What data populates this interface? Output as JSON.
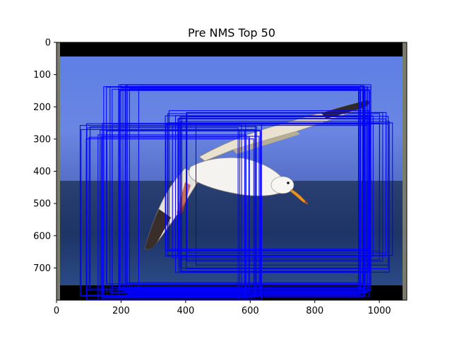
{
  "figure": {
    "title": "Pre NMS Top 50"
  },
  "axes": {
    "x_ticks": [
      "0",
      "200",
      "400",
      "600",
      "800",
      "1000"
    ],
    "y_ticks": [
      "0",
      "100",
      "200",
      "300",
      "400",
      "500",
      "600",
      "700"
    ],
    "x_range": [
      0,
      1085
    ],
    "y_range": [
      800,
      0
    ]
  },
  "image": {
    "subject": "seagull in flight over the sea",
    "colors": {
      "sky": "#6a85e4",
      "sea": "#24386a",
      "bar": "#000000",
      "side_strip": "#7a7a6e"
    }
  },
  "boxes": {
    "color": "#0000ff",
    "count": 50
  }
}
